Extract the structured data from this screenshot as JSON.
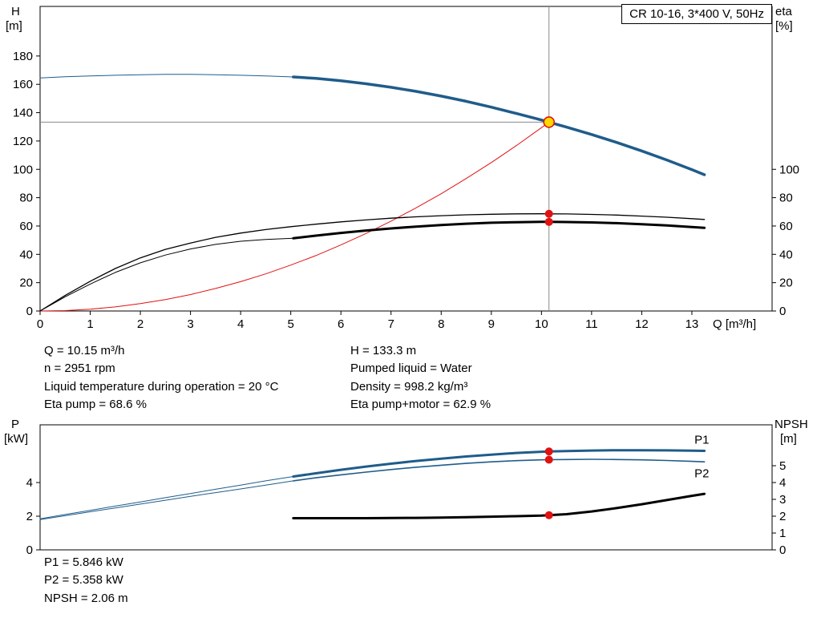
{
  "colors": {
    "curve_blue": "#1f5c8a",
    "label_blue": "#3878b4",
    "red": "#e11212",
    "yellow": "#ffd800",
    "gray": "#8a8a8a",
    "black": "#000000"
  },
  "annotations": {
    "mid_left": [
      "Q = 10.15 m³/h",
      "n = 2951 rpm",
      "Liquid temperature during operation = 20 °C",
      "Eta pump = 68.6 %"
    ],
    "mid_right": [
      "H = 133.3 m",
      "Pumped liquid = Water",
      "Density = 998.2 kg/m³",
      "Eta pump+motor = 62.9 %"
    ],
    "bottom": [
      "P1 = 5.846 kW",
      "P2 = 5.358 kW",
      "NPSH = 2.06 m"
    ]
  },
  "chart_data": [
    {
      "type": "line",
      "name": "head-efficiency-chart",
      "title": "CR 10-16, 3*400 V, 50Hz",
      "x_axis": {
        "label": "Q [m³/h]",
        "min": 0,
        "max": 14.6,
        "ticks": [
          0,
          1,
          2,
          3,
          4,
          5,
          6,
          7,
          8,
          9,
          10,
          11,
          12,
          13
        ],
        "show": true
      },
      "y_left": {
        "lines": [
          "H",
          "[m]"
        ],
        "min": 0,
        "max": 215,
        "ticks": [
          0,
          20,
          40,
          60,
          80,
          100,
          120,
          140,
          160,
          180
        ]
      },
      "y_right": {
        "lines": [
          "eta",
          "[%]"
        ],
        "min": 0,
        "max": 215,
        "ticks": [
          0,
          20,
          40,
          60,
          80,
          100
        ]
      },
      "crosshair": {
        "q": 10.15,
        "v": 133.3
      },
      "series": [
        {
          "name": "head-curve-thin",
          "color": "curve_blue",
          "width": 1,
          "axis": "left",
          "points": [
            [
              0,
              164.5
            ],
            [
              0.5,
              165.3
            ],
            [
              1,
              165.9
            ],
            [
              1.5,
              166.4
            ],
            [
              2,
              166.8
            ],
            [
              2.5,
              167.0
            ],
            [
              3,
              167.0
            ],
            [
              3.5,
              166.8
            ],
            [
              4,
              166.4
            ],
            [
              4.5,
              165.9
            ],
            [
              5.05,
              165.2
            ]
          ]
        },
        {
          "name": "head-curve",
          "color": "curve_blue",
          "width": 3.5,
          "axis": "left",
          "points": [
            [
              5.05,
              165.2
            ],
            [
              5.5,
              164.2
            ],
            [
              6,
              162.5
            ],
            [
              6.5,
              160.4
            ],
            [
              7,
              157.9
            ],
            [
              7.5,
              155.0
            ],
            [
              8,
              151.7
            ],
            [
              8.5,
              148.0
            ],
            [
              9,
              143.9
            ],
            [
              9.5,
              139.4
            ],
            [
              10,
              134.8
            ],
            [
              10.15,
              133.3
            ],
            [
              10.5,
              129.8
            ],
            [
              11,
              124.6
            ],
            [
              11.5,
              119.0
            ],
            [
              12,
              113.0
            ],
            [
              12.5,
              106.6
            ],
            [
              13,
              99.8
            ],
            [
              13.25,
              96.2
            ]
          ]
        },
        {
          "name": "system-resistance-curve",
          "color": "red",
          "width": 1,
          "axis": "left",
          "points": [
            [
              0,
              0
            ],
            [
              0.5,
              0.3
            ],
            [
              1,
              1.3
            ],
            [
              1.5,
              2.9
            ],
            [
              2,
              5.2
            ],
            [
              2.5,
              8.1
            ],
            [
              3,
              11.6
            ],
            [
              3.5,
              15.9
            ],
            [
              4,
              20.7
            ],
            [
              4.5,
              26.2
            ],
            [
              5,
              32.4
            ],
            [
              5.5,
              39.1
            ],
            [
              6,
              46.6
            ],
            [
              6.5,
              54.7
            ],
            [
              7,
              63.4
            ],
            [
              7.5,
              72.8
            ],
            [
              8,
              82.8
            ],
            [
              8.5,
              93.5
            ],
            [
              9,
              104.8
            ],
            [
              9.5,
              116.8
            ],
            [
              10,
              129.4
            ],
            [
              10.15,
              133.3
            ]
          ]
        },
        {
          "name": "eta-pump-curve",
          "color": "black",
          "width": 1.3,
          "axis": "right",
          "points": [
            [
              0,
              0
            ],
            [
              0.5,
              11
            ],
            [
              1,
              21
            ],
            [
              1.5,
              30
            ],
            [
              2,
              37.5
            ],
            [
              2.5,
              43.5
            ],
            [
              3,
              48
            ],
            [
              3.5,
              52
            ],
            [
              4,
              55
            ],
            [
              4.5,
              57.5
            ],
            [
              5,
              59.5
            ],
            [
              5.5,
              61.3
            ],
            [
              6,
              62.9
            ],
            [
              6.5,
              64.3
            ],
            [
              7,
              65.5
            ],
            [
              7.5,
              66.5
            ],
            [
              8,
              67.3
            ],
            [
              8.5,
              67.9
            ],
            [
              9,
              68.3
            ],
            [
              9.5,
              68.55
            ],
            [
              10,
              68.65
            ],
            [
              10.15,
              68.6
            ],
            [
              10.5,
              68.5
            ],
            [
              11,
              68.2
            ],
            [
              11.5,
              67.7
            ],
            [
              12,
              67.0
            ],
            [
              12.5,
              66.2
            ],
            [
              13,
              65.2
            ],
            [
              13.25,
              64.6
            ]
          ]
        },
        {
          "name": "eta-pump-motor-curve-thin",
          "color": "black",
          "width": 1,
          "axis": "right",
          "points": [
            [
              0,
              0
            ],
            [
              0.5,
              10
            ],
            [
              1,
              19
            ],
            [
              1.5,
              27.2
            ],
            [
              2,
              34.0
            ],
            [
              2.5,
              39.5
            ],
            [
              3,
              43.8
            ],
            [
              3.5,
              47.0
            ],
            [
              4,
              49.2
            ],
            [
              4.5,
              50.5
            ],
            [
              5.05,
              51.3
            ]
          ]
        },
        {
          "name": "eta-pump-motor-curve",
          "color": "black",
          "width": 3,
          "axis": "right",
          "points": [
            [
              5.05,
              51.3
            ],
            [
              5.5,
              53.2
            ],
            [
              6,
              55.1
            ],
            [
              6.5,
              56.8
            ],
            [
              7,
              58.3
            ],
            [
              7.5,
              59.6
            ],
            [
              8,
              60.7
            ],
            [
              8.5,
              61.6
            ],
            [
              9,
              62.3
            ],
            [
              9.5,
              62.7
            ],
            [
              10,
              62.9
            ],
            [
              10.15,
              62.9
            ],
            [
              10.5,
              62.8
            ],
            [
              11,
              62.5
            ],
            [
              11.5,
              62.0
            ],
            [
              12,
              61.3
            ],
            [
              12.5,
              60.4
            ],
            [
              13,
              59.3
            ],
            [
              13.25,
              58.7
            ]
          ]
        }
      ],
      "markers": [
        {
          "name": "duty-point",
          "q": 10.15,
          "v": 133.3,
          "axis": "left",
          "style": "duty"
        },
        {
          "name": "eta-pump-point",
          "q": 10.15,
          "v": 68.6,
          "axis": "right",
          "style": "red"
        },
        {
          "name": "eta-pump-motor-point",
          "q": 10.15,
          "v": 62.9,
          "axis": "right",
          "style": "red"
        }
      ],
      "curve_labels": []
    },
    {
      "type": "line",
      "name": "power-npsh-chart",
      "title": "",
      "x_axis": {
        "label": "",
        "min": 0,
        "max": 14.6,
        "ticks": [],
        "show": false
      },
      "y_left": {
        "lines": [
          "P",
          "[kW]"
        ],
        "min": 0,
        "max": 7.43,
        "ticks": [
          0,
          2,
          4
        ]
      },
      "y_right": {
        "lines": [
          "NPSH",
          "[m]"
        ],
        "min": 0,
        "max": 7.43,
        "ticks": [
          0,
          1,
          2,
          3,
          4,
          5
        ]
      },
      "series": [
        {
          "name": "p1-curve-thin",
          "color": "curve_blue",
          "width": 1,
          "axis": "left",
          "points": [
            [
              0,
              1.85
            ],
            [
              0.5,
              2.1
            ],
            [
              1,
              2.35
            ],
            [
              1.5,
              2.6
            ],
            [
              2,
              2.85
            ],
            [
              2.5,
              3.1
            ],
            [
              3,
              3.35
            ],
            [
              3.5,
              3.6
            ],
            [
              4,
              3.85
            ],
            [
              4.5,
              4.1
            ],
            [
              5.05,
              4.36
            ]
          ]
        },
        {
          "name": "p1-curve",
          "color": "curve_blue",
          "width": 3,
          "axis": "left",
          "points": [
            [
              5.05,
              4.36
            ],
            [
              5.5,
              4.55
            ],
            [
              6,
              4.76
            ],
            [
              6.5,
              4.95
            ],
            [
              7,
              5.12
            ],
            [
              7.5,
              5.28
            ],
            [
              8,
              5.42
            ],
            [
              8.5,
              5.55
            ],
            [
              9,
              5.66
            ],
            [
              9.5,
              5.76
            ],
            [
              10,
              5.83
            ],
            [
              10.15,
              5.85
            ],
            [
              10.5,
              5.87
            ],
            [
              11,
              5.9
            ],
            [
              11.5,
              5.92
            ],
            [
              12,
              5.92
            ],
            [
              12.5,
              5.91
            ],
            [
              13,
              5.89
            ],
            [
              13.25,
              5.88
            ]
          ]
        },
        {
          "name": "p2-curve-thin",
          "color": "curve_blue",
          "width": 1,
          "axis": "left",
          "points": [
            [
              0,
              1.8
            ],
            [
              0.5,
              2.03
            ],
            [
              1,
              2.26
            ],
            [
              1.5,
              2.49
            ],
            [
              2,
              2.72
            ],
            [
              2.5,
              2.95
            ],
            [
              3,
              3.18
            ],
            [
              3.5,
              3.4
            ],
            [
              4,
              3.62
            ],
            [
              4.5,
              3.85
            ],
            [
              5.05,
              4.1
            ]
          ]
        },
        {
          "name": "p2-curve",
          "color": "curve_blue",
          "width": 1.6,
          "axis": "left",
          "points": [
            [
              5.05,
              4.1
            ],
            [
              5.5,
              4.28
            ],
            [
              6,
              4.46
            ],
            [
              6.5,
              4.62
            ],
            [
              7,
              4.77
            ],
            [
              7.5,
              4.91
            ],
            [
              8,
              5.03
            ],
            [
              8.5,
              5.14
            ],
            [
              9,
              5.23
            ],
            [
              9.5,
              5.3
            ],
            [
              10,
              5.35
            ],
            [
              10.15,
              5.36
            ],
            [
              10.5,
              5.37
            ],
            [
              11,
              5.38
            ],
            [
              11.5,
              5.37
            ],
            [
              12,
              5.35
            ],
            [
              12.5,
              5.31
            ],
            [
              13,
              5.26
            ],
            [
              13.25,
              5.23
            ]
          ]
        },
        {
          "name": "npsh-curve",
          "color": "black",
          "width": 3,
          "axis": "right",
          "points": [
            [
              5.05,
              1.88
            ],
            [
              5.5,
              1.88
            ],
            [
              6,
              1.88
            ],
            [
              6.5,
              1.88
            ],
            [
              7,
              1.89
            ],
            [
              7.5,
              1.9
            ],
            [
              8,
              1.92
            ],
            [
              8.5,
              1.94
            ],
            [
              9,
              1.97
            ],
            [
              9.5,
              2.0
            ],
            [
              10,
              2.04
            ],
            [
              10.15,
              2.06
            ],
            [
              10.5,
              2.12
            ],
            [
              11,
              2.28
            ],
            [
              11.5,
              2.48
            ],
            [
              12,
              2.71
            ],
            [
              12.5,
              2.96
            ],
            [
              13,
              3.21
            ],
            [
              13.25,
              3.33
            ]
          ]
        }
      ],
      "markers": [
        {
          "name": "p1-point",
          "q": 10.15,
          "v": 5.846,
          "axis": "left",
          "style": "red"
        },
        {
          "name": "p2-point",
          "q": 10.15,
          "v": 5.358,
          "axis": "left",
          "style": "red"
        },
        {
          "name": "npsh-point",
          "q": 10.15,
          "v": 2.06,
          "axis": "right",
          "style": "red"
        }
      ],
      "curve_labels": [
        {
          "text": "P1",
          "q": 13.05,
          "v": 6.55,
          "axis": "left"
        },
        {
          "text": "P2",
          "q": 13.05,
          "v": 4.55,
          "axis": "left"
        }
      ]
    }
  ]
}
